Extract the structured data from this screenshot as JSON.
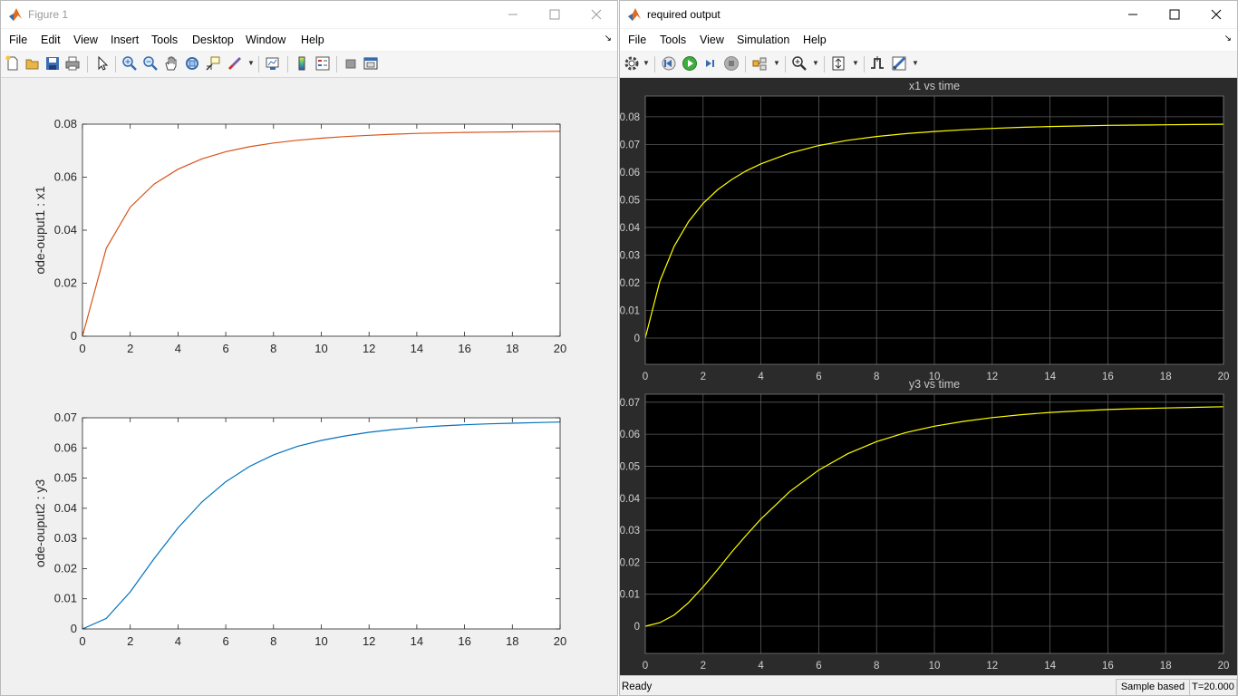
{
  "figure_window": {
    "title": "Figure 1",
    "menu": [
      "File",
      "Edit",
      "View",
      "Insert",
      "Tools",
      "Desktop",
      "Window",
      "Help"
    ],
    "menu_corner": "↘",
    "toolbar_icons": [
      "new-figure-icon",
      "open-file-icon",
      "save-icon",
      "print-icon",
      "pointer-icon",
      "zoom-in-icon",
      "zoom-out-icon",
      "pan-icon",
      "rotate-3d-icon",
      "data-cursor-icon",
      "brush-icon",
      "link-plot-icon",
      "colorbar-icon",
      "legend-icon",
      "hide-plot-tools-icon",
      "show-plot-tools-icon"
    ]
  },
  "scope_window": {
    "title": "required output",
    "menu": [
      "File",
      "Tools",
      "View",
      "Simulation",
      "Help"
    ],
    "menu_corner": "↘",
    "toolbar_icons": [
      "settings-icon",
      "step-back-icon",
      "run-icon",
      "step-forward-icon",
      "stop-icon",
      "highlight-block-icon",
      "zoom-icon",
      "scale-axes-icon",
      "triggers-icon",
      "measurements-icon"
    ],
    "status": {
      "ready": "Ready",
      "mode": "Sample based",
      "time": "T=20.000"
    }
  },
  "chart_data": [
    {
      "type": "line",
      "ylabel": "ode-ouput1 : x1",
      "xlim": [
        0,
        20
      ],
      "ylim": [
        0,
        0.08
      ],
      "xticks": [
        "0",
        "2",
        "4",
        "6",
        "8",
        "10",
        "12",
        "14",
        "16",
        "18",
        "20"
      ],
      "yticks": [
        "0",
        "0.02",
        "0.04",
        "0.06",
        "0.08"
      ],
      "color": "#d95319",
      "x": [
        0,
        1,
        2,
        3,
        4,
        5,
        6,
        7,
        8,
        9,
        10,
        11,
        12,
        13,
        14,
        15,
        16,
        17,
        18,
        19,
        20
      ],
      "y": [
        0,
        0.0332,
        0.0487,
        0.0574,
        0.063,
        0.0669,
        0.0696,
        0.0715,
        0.0729,
        0.0739,
        0.0747,
        0.0753,
        0.0758,
        0.0762,
        0.0765,
        0.0767,
        0.0769,
        0.077,
        0.0771,
        0.0772,
        0.0773
      ]
    },
    {
      "type": "line",
      "ylabel": "ode-ouput2 : y3",
      "xlim": [
        0,
        20
      ],
      "ylim": [
        0,
        0.07
      ],
      "xticks": [
        "0",
        "2",
        "4",
        "6",
        "8",
        "10",
        "12",
        "14",
        "16",
        "18",
        "20"
      ],
      "yticks": [
        "0",
        "0.01",
        "0.02",
        "0.03",
        "0.04",
        "0.05",
        "0.06",
        "0.07"
      ],
      "color": "#0072bd",
      "x": [
        0,
        1,
        2,
        3,
        4,
        5,
        6,
        7,
        8,
        9,
        10,
        11,
        12,
        13,
        14,
        15,
        16,
        17,
        18,
        19,
        20
      ],
      "y": [
        0,
        0.0035,
        0.0123,
        0.0233,
        0.0335,
        0.0421,
        0.0488,
        0.0539,
        0.0577,
        0.0605,
        0.0625,
        0.064,
        0.0652,
        0.0661,
        0.0668,
        0.0673,
        0.0677,
        0.068,
        0.0682,
        0.0684,
        0.0686
      ]
    },
    {
      "type": "line",
      "title": "x1 vs time",
      "xlim": [
        0,
        20
      ],
      "ylim": [
        -0.0095,
        0.0875
      ],
      "xticks": [
        "0",
        "2",
        "4",
        "6",
        "8",
        "10",
        "12",
        "14",
        "16",
        "18",
        "20"
      ],
      "yticks": [
        "0",
        "0.01",
        "0.02",
        "0.03",
        "0.04",
        "0.05",
        "0.06",
        "0.07",
        "0.08"
      ],
      "grid": true,
      "color": "#ffff00",
      "x": [
        0,
        0.5,
        1,
        1.5,
        2,
        2.5,
        3,
        3.5,
        4,
        5,
        6,
        7,
        8,
        9,
        10,
        11,
        12,
        13,
        14,
        15,
        16,
        17,
        18,
        19,
        20
      ],
      "y": [
        0,
        0.0205,
        0.0332,
        0.0421,
        0.0487,
        0.0536,
        0.0574,
        0.0605,
        0.063,
        0.0669,
        0.0696,
        0.0715,
        0.0729,
        0.0739,
        0.0747,
        0.0753,
        0.0758,
        0.0762,
        0.0765,
        0.0767,
        0.0769,
        0.077,
        0.0771,
        0.0772,
        0.0773
      ]
    },
    {
      "type": "line",
      "title": "y3 vs time",
      "xlim": [
        0,
        20
      ],
      "ylim": [
        -0.0085,
        0.0725
      ],
      "xticks": [
        "0",
        "2",
        "4",
        "6",
        "8",
        "10",
        "12",
        "14",
        "16",
        "18",
        "20"
      ],
      "yticks": [
        "0",
        "0.01",
        "0.02",
        "0.03",
        "0.04",
        "0.05",
        "0.06",
        "0.07"
      ],
      "grid": true,
      "color": "#ffff00",
      "x": [
        0,
        0.5,
        1,
        1.5,
        2,
        2.5,
        3,
        3.5,
        4,
        5,
        6,
        7,
        8,
        9,
        10,
        11,
        12,
        13,
        14,
        15,
        16,
        17,
        18,
        19,
        20
      ],
      "y": [
        0,
        0.0011,
        0.0035,
        0.0074,
        0.0123,
        0.0177,
        0.0233,
        0.0285,
        0.0335,
        0.0421,
        0.0488,
        0.0539,
        0.0577,
        0.0605,
        0.0625,
        0.064,
        0.0652,
        0.0661,
        0.0668,
        0.0673,
        0.0677,
        0.068,
        0.0682,
        0.0684,
        0.0686
      ]
    }
  ]
}
